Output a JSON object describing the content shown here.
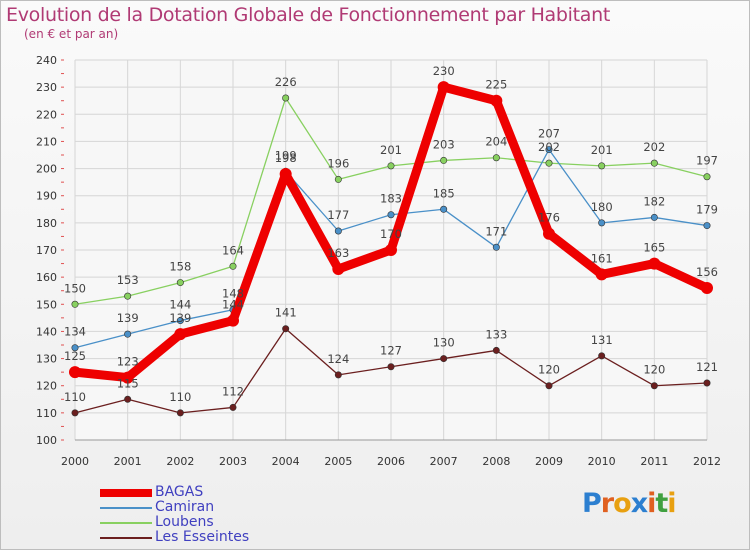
{
  "chart_data": {
    "type": "line",
    "title": "Evolution de la Dotation Globale de Fonctionnement par Habitant",
    "subtitle": "(en € et par an)",
    "x": [
      "2000",
      "2001",
      "2002",
      "2003",
      "2004",
      "2005",
      "2006",
      "2007",
      "2008",
      "2009",
      "2010",
      "2011",
      "2012"
    ],
    "ylim": [
      100,
      240
    ],
    "yticks": [
      100,
      110,
      120,
      130,
      140,
      150,
      160,
      170,
      180,
      190,
      200,
      210,
      220,
      230,
      240
    ],
    "grid": true,
    "legend_position": "bottom-left",
    "series": [
      {
        "name": "BAGAS",
        "color": "#ee0000",
        "values": [
          125,
          123,
          139,
          144,
          198,
          163,
          170,
          230,
          225,
          176,
          161,
          165,
          156
        ]
      },
      {
        "name": "Camiran",
        "color": "#4a90c8",
        "values": [
          134,
          139,
          144,
          148,
          199,
          177,
          183,
          185,
          171,
          207,
          180,
          182,
          179
        ]
      },
      {
        "name": "Loubens",
        "color": "#88d060",
        "values": [
          150,
          153,
          158,
          164,
          226,
          196,
          201,
          203,
          204,
          202,
          201,
          202,
          197
        ]
      },
      {
        "name": "Les Esseintes",
        "color": "#6b1f1f",
        "values": [
          110,
          115,
          110,
          112,
          141,
          124,
          127,
          130,
          133,
          120,
          131,
          120,
          121
        ]
      }
    ]
  },
  "logo": {
    "text": "Proxiti",
    "letter_colors": [
      "#2c7fd0",
      "#e06020",
      "#e8a010",
      "#2c7fd0",
      "#e06020",
      "#40a040",
      "#e8a010"
    ]
  }
}
